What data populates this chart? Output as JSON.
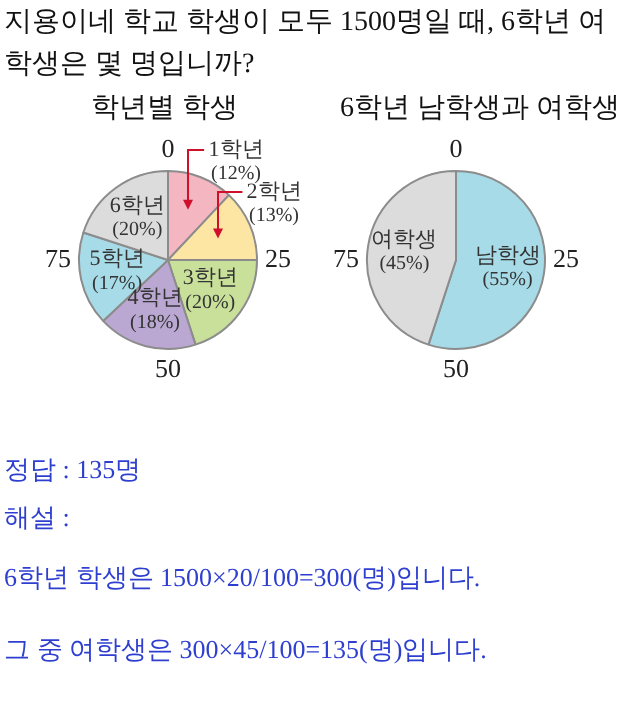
{
  "chart_data": [
    {
      "type": "other",
      "annotations": [
        "지용이네 학교 학생이 모두 1500명일 때, 6학년 여학생은 몇 명입니까?"
      ]
    },
    {
      "type": "pie",
      "title": "학년별 학생",
      "categories": [
        "1학년",
        "2학년",
        "3학년",
        "4학년",
        "5학년",
        "6학년"
      ],
      "values": [
        12,
        13,
        20,
        18,
        17,
        20
      ],
      "colors": [
        "#f4b7c1",
        "#fde5a4",
        "#c9e09b",
        "#baa7d2",
        "#a7dbe8",
        "#dcdcdc"
      ],
      "value_labels": [
        "(12%)",
        "(13%)",
        "(20%)",
        "(18%)",
        "(17%)",
        "(20%)"
      ],
      "annotations": [
        "0",
        "25",
        "50",
        "75"
      ]
    },
    {
      "type": "pie",
      "title": "6학년 남학생과 여학생",
      "categories": [
        "남학생",
        "여학생"
      ],
      "values": [
        55,
        45
      ],
      "colors": [
        "#a7dbe8",
        "#dcdcdc"
      ],
      "value_labels": [
        "(55%)",
        "(45%)"
      ],
      "annotations": [
        "0",
        "25",
        "50",
        "75"
      ]
    },
    {
      "type": "other",
      "annotations": [
        "정답 : 135명",
        "해설 :",
        "6학년 학생은 1500×20/100=300(명)입니다.",
        "그 중 여학생은 300×45/100=135(명)입니다."
      ]
    }
  ]
}
